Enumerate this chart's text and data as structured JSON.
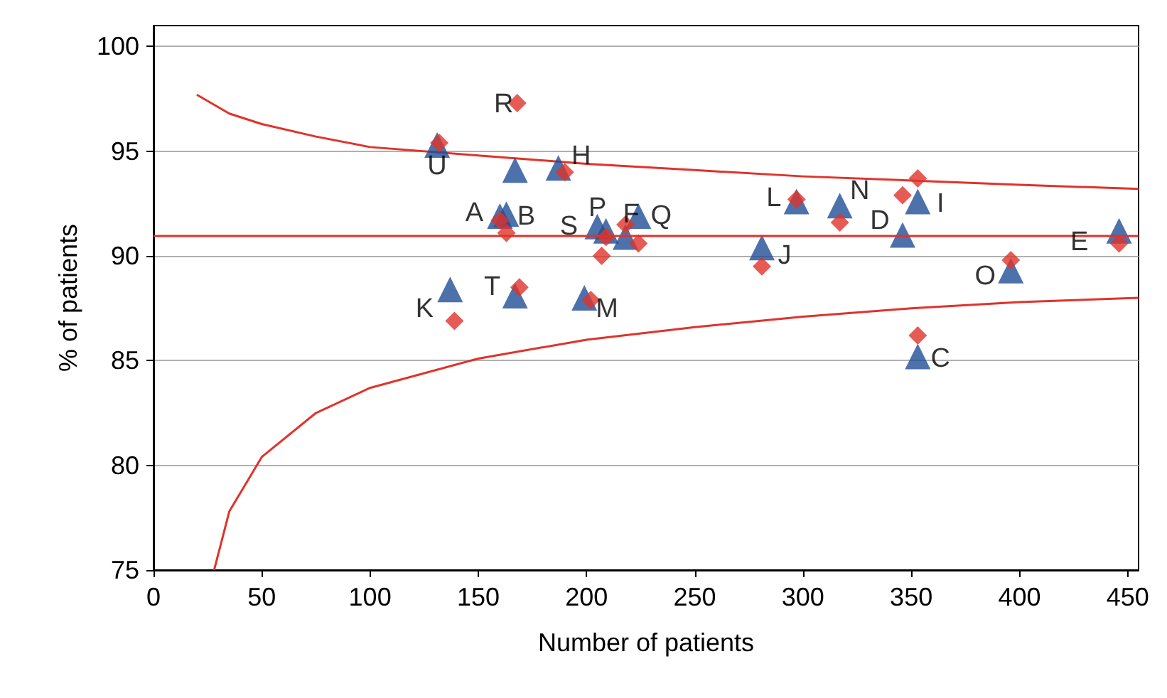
{
  "chart_data": {
    "type": "scatter",
    "xlabel": "Number of patients",
    "ylabel": "% of patients",
    "xlim": [
      0,
      455
    ],
    "ylim": [
      75,
      101
    ],
    "xticks": [
      0,
      50,
      100,
      150,
      200,
      250,
      300,
      350,
      400,
      450
    ],
    "yticks": [
      75,
      80,
      85,
      90,
      95,
      100
    ],
    "grid": "y",
    "series": [
      {
        "marker": "triangle",
        "color": "#1f4e96",
        "x": [
          160,
          163,
          353,
          346,
          446,
          218,
          187,
          353,
          281,
          137,
          297,
          199,
          317,
          396,
          209,
          224,
          167,
          205,
          167,
          131
        ],
        "values": [
          91.9,
          92.0,
          85.2,
          91.0,
          91.2,
          90.9,
          94.2,
          92.6,
          90.4,
          88.4,
          92.6,
          88.0,
          92.4,
          89.3,
          91.2,
          91.9,
          94.1,
          91.4,
          88.1,
          95.3
        ]
      },
      {
        "marker": "diamond",
        "color": "#e0332a",
        "x": [
          160,
          163,
          353,
          346,
          446,
          218,
          190,
          353,
          281,
          139,
          297,
          202,
          317,
          396,
          209,
          224,
          168,
          207,
          169,
          132
        ],
        "values": [
          91.7,
          91.1,
          86.2,
          92.9,
          90.6,
          91.5,
          94.0,
          93.7,
          89.5,
          86.9,
          92.7,
          87.9,
          91.6,
          89.8,
          90.9,
          90.6,
          97.3,
          90.0,
          88.5,
          95.4
        ]
      },
      {
        "type": "line",
        "marker": "none",
        "color": "#e0332a",
        "x": [
          20,
          35,
          50,
          75,
          100,
          150,
          200,
          250,
          300,
          350,
          400,
          455
        ],
        "values": [
          97.7,
          96.8,
          96.3,
          95.7,
          95.2,
          94.8,
          94.4,
          94.1,
          93.8,
          93.6,
          93.4,
          93.2
        ]
      },
      {
        "type": "line",
        "marker": "none",
        "color": "#e0332a",
        "x": [
          28,
          35,
          50,
          75,
          100,
          150,
          200,
          250,
          300,
          350,
          400,
          455
        ],
        "values": [
          75,
          77.8,
          80.4,
          82.5,
          83.7,
          85.1,
          86.0,
          86.6,
          87.1,
          87.5,
          87.8,
          88.0
        ]
      }
    ],
    "ref_lines": [
      {
        "axis": "y",
        "value": 91,
        "color": "#e0332a"
      }
    ],
    "annotations": [
      {
        "text": "A",
        "x": 160,
        "y": 91.9
      },
      {
        "text": "B",
        "x": 163,
        "y": 92.0
      },
      {
        "text": "C",
        "x": 353,
        "y": 85.2
      },
      {
        "text": "D",
        "x": 346,
        "y": 91.0
      },
      {
        "text": "E",
        "x": 446,
        "y": 91.2
      },
      {
        "text": "F",
        "x": 218,
        "y": 90.9
      },
      {
        "text": "H",
        "x": 187,
        "y": 94.2
      },
      {
        "text": "I",
        "x": 353,
        "y": 92.6
      },
      {
        "text": "J",
        "x": 281,
        "y": 90.4
      },
      {
        "text": "K",
        "x": 137,
        "y": 88.4
      },
      {
        "text": "L",
        "x": 297,
        "y": 92.6
      },
      {
        "text": "M",
        "x": 199,
        "y": 88.0
      },
      {
        "text": "N",
        "x": 317,
        "y": 92.4
      },
      {
        "text": "O",
        "x": 396,
        "y": 89.3
      },
      {
        "text": "P",
        "x": 209,
        "y": 91.2
      },
      {
        "text": "Q",
        "x": 224,
        "y": 91.9
      },
      {
        "text": "R",
        "x": 167,
        "y": 94.1
      },
      {
        "text": "S",
        "x": 205,
        "y": 91.4
      },
      {
        "text": "T",
        "x": 167,
        "y": 88.1
      },
      {
        "text": "U",
        "x": 131,
        "y": 95.3
      }
    ]
  }
}
